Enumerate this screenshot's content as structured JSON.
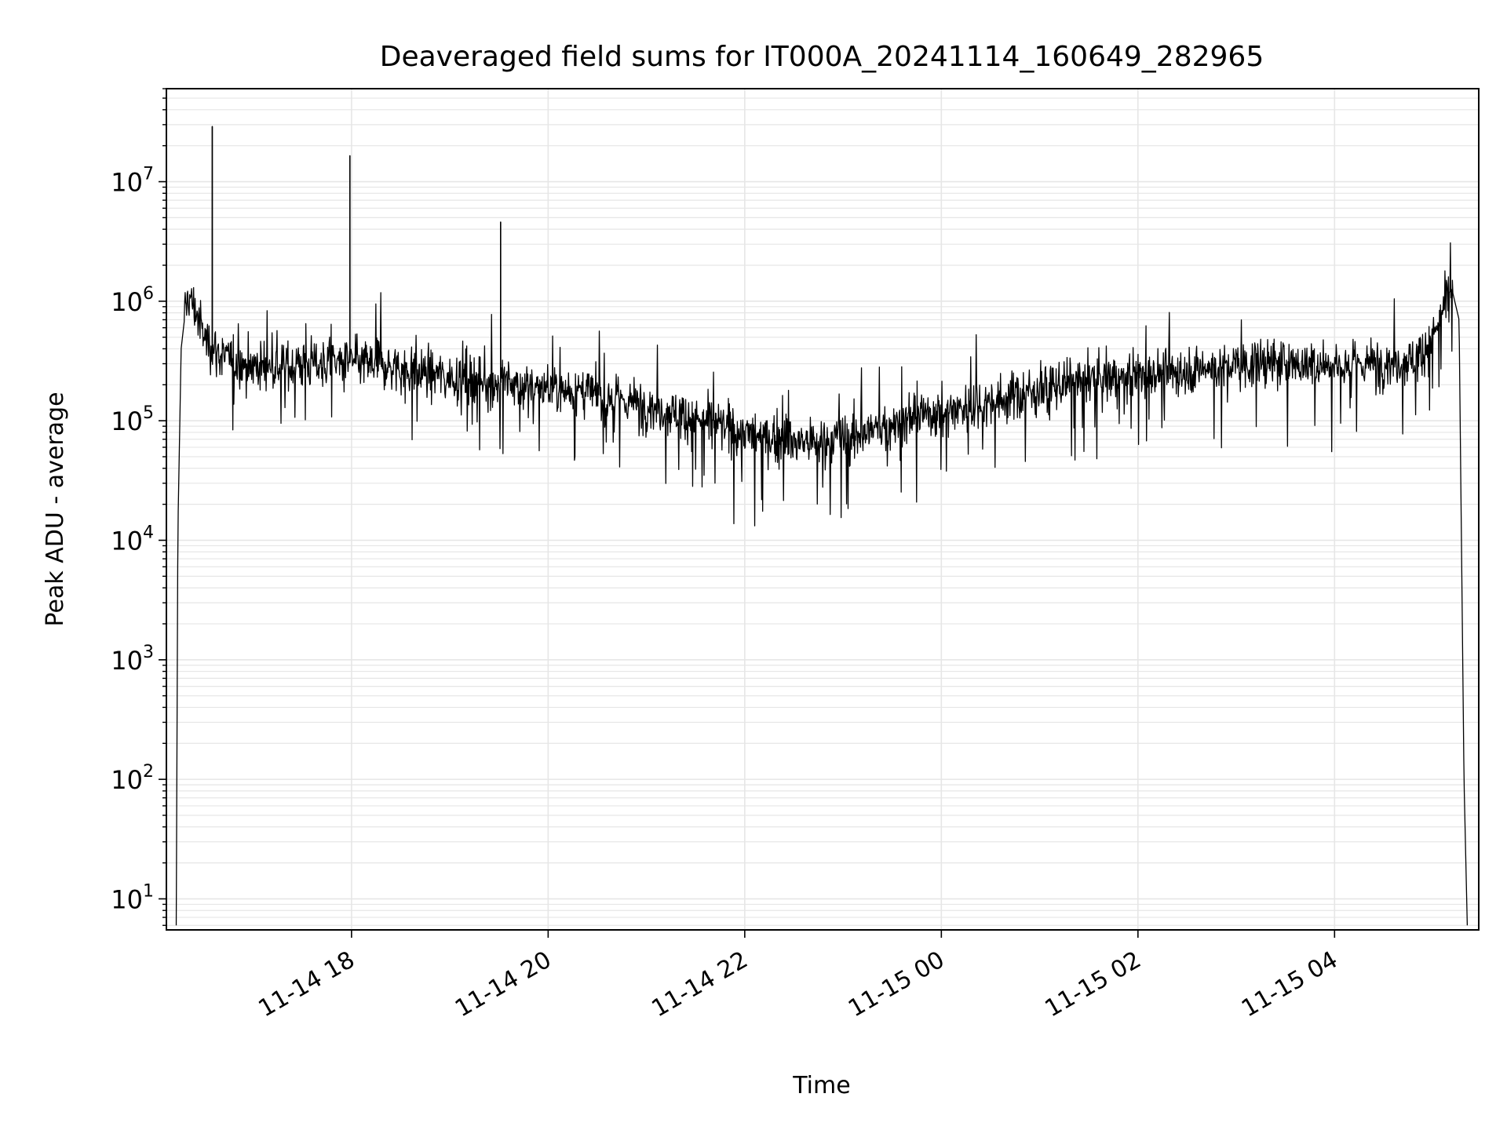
{
  "chart_data": {
    "type": "line",
    "title": "Deaveraged field sums for IT000A_20241114_160649_282965",
    "xlabel": "Time",
    "ylabel": "Peak ADU - average",
    "yscale": "log",
    "xlim": [
      "2024-11-14T16:07",
      "2024-11-15T05:28"
    ],
    "ylim": [
      5.5,
      60000000
    ],
    "grid": true,
    "x_ticks": [
      {
        "value": "2024-11-14T18:00",
        "label": "11-14 18"
      },
      {
        "value": "2024-11-14T20:00",
        "label": "11-14 20"
      },
      {
        "value": "2024-11-14T22:00",
        "label": "11-14 22"
      },
      {
        "value": "2024-11-15T00:00",
        "label": "11-15 00"
      },
      {
        "value": "2024-11-15T02:00",
        "label": "11-15 02"
      },
      {
        "value": "2024-11-15T04:00",
        "label": "11-15 04"
      }
    ],
    "y_ticks": [
      {
        "value": 10,
        "base": "10",
        "exp": "1"
      },
      {
        "value": 100,
        "base": "10",
        "exp": "2"
      },
      {
        "value": 1000,
        "base": "10",
        "exp": "3"
      },
      {
        "value": 10000,
        "base": "10",
        "exp": "4"
      },
      {
        "value": 100000,
        "base": "10",
        "exp": "5"
      },
      {
        "value": 1000000,
        "base": "10",
        "exp": "6"
      },
      {
        "value": 10000000,
        "base": "10",
        "exp": "7"
      }
    ],
    "line_color": "#000000",
    "series": [
      {
        "x": [
          "2024-11-14T16:13",
          "2024-11-14T16:14",
          "2024-11-14T16:16",
          "2024-11-14T16:18",
          "2024-11-14T16:20",
          "2024-11-14T16:24",
          "2024-11-14T16:30",
          "2024-11-14T16:40",
          "2024-11-14T16:52",
          "2024-11-14T17:10",
          "2024-11-14T17:30",
          "2024-11-14T17:50",
          "2024-11-14T18:15",
          "2024-11-14T18:45",
          "2024-11-14T19:15",
          "2024-11-14T19:45",
          "2024-11-14T20:15",
          "2024-11-14T20:45",
          "2024-11-14T21:15",
          "2024-11-14T21:45",
          "2024-11-14T22:15",
          "2024-11-14T22:45",
          "2024-11-14T23:15",
          "2024-11-14T23:45",
          "2024-11-15T00:15",
          "2024-11-15T00:45",
          "2024-11-15T01:15",
          "2024-11-15T01:45",
          "2024-11-15T02:15",
          "2024-11-15T02:45",
          "2024-11-15T03:15",
          "2024-11-15T03:45",
          "2024-11-15T04:15",
          "2024-11-15T04:35",
          "2024-11-15T04:50",
          "2024-11-15T05:00",
          "2024-11-15T05:08",
          "2024-11-15T05:12",
          "2024-11-15T05:16",
          "2024-11-15T05:19",
          "2024-11-15T05:21"
        ],
        "y": [
          6,
          12000,
          400000,
          700000,
          1100000,
          900000,
          500000,
          350000,
          300000,
          280000,
          300000,
          310000,
          300000,
          250000,
          220000,
          200000,
          180000,
          150000,
          120000,
          90000,
          70000,
          65000,
          80000,
          110000,
          130000,
          160000,
          200000,
          230000,
          250000,
          280000,
          300000,
          300000,
          300000,
          310000,
          330000,
          500000,
          1000000,
          1200000,
          700000,
          100,
          6
        ]
      }
    ],
    "annotated_spikes": [
      {
        "x": "2024-11-14T16:35",
        "y": 29000000
      },
      {
        "x": "2024-11-14T17:59",
        "y": 16500000
      },
      {
        "x": "2024-11-14T19:31",
        "y": 4600000
      }
    ]
  }
}
